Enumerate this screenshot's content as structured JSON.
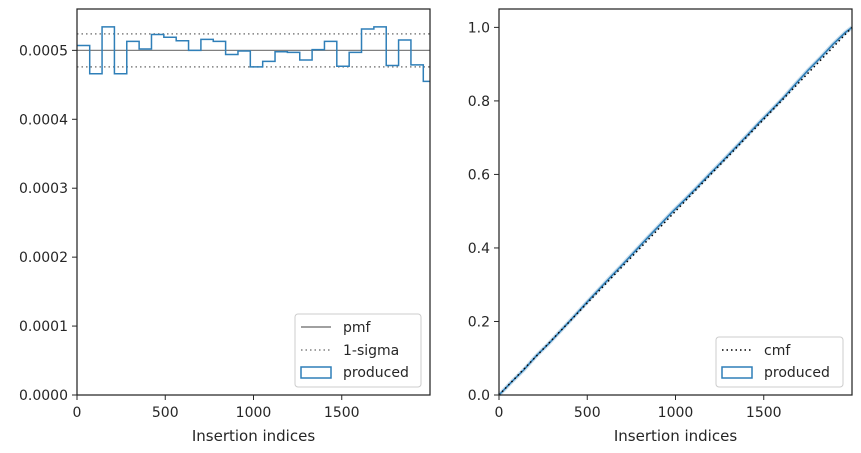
{
  "chart_data": [
    {
      "type": "histogram",
      "xlabel": "Insertion indices",
      "ylabel": "",
      "xlim": [
        0,
        2000
      ],
      "ylim": [
        0,
        0.00056
      ],
      "xticks": [
        0,
        500,
        1000,
        1500
      ],
      "yticks": [
        0.0,
        0.0001,
        0.0002,
        0.0003,
        0.0004,
        0.0005
      ],
      "ytick_labels": [
        "0.0000",
        "0.0001",
        "0.0002",
        "0.0003",
        "0.0004",
        "0.0005"
      ],
      "legend_position": "lower-right",
      "series": [
        {
          "name": "pmf",
          "kind": "hline",
          "value": 0.0005,
          "color": "#808080",
          "style": "solid"
        },
        {
          "name": "1-sigma",
          "kind": "hlines",
          "values": [
            0.000476,
            0.000524
          ],
          "color": "#808080",
          "style": "dotted"
        },
        {
          "name": "produced",
          "kind": "step",
          "color": "#2f7fb8",
          "bin_edges": [
            0,
            72,
            142,
            212,
            282,
            352,
            422,
            492,
            562,
            632,
            702,
            772,
            842,
            912,
            982,
            1052,
            1122,
            1192,
            1262,
            1332,
            1402,
            1472,
            1542,
            1612,
            1682,
            1752,
            1822,
            1892,
            1962,
            2000
          ],
          "values": [
            0.000507,
            0.000466,
            0.000534,
            0.000466,
            0.000513,
            0.000502,
            0.000523,
            0.000519,
            0.000514,
            0.0005,
            0.000516,
            0.000513,
            0.000494,
            0.000499,
            0.000476,
            0.000484,
            0.000498,
            0.000497,
            0.000486,
            0.000501,
            0.000513,
            0.000477,
            0.000497,
            0.000531,
            0.000534,
            0.000478,
            0.000515,
            0.000479,
            0.000455
          ]
        }
      ]
    },
    {
      "type": "line",
      "xlabel": "Insertion indices",
      "ylabel": "",
      "xlim": [
        0,
        2000
      ],
      "ylim": [
        0,
        1.05
      ],
      "xticks": [
        0,
        500,
        1000,
        1500
      ],
      "yticks": [
        0.0,
        0.2,
        0.4,
        0.6,
        0.8,
        1.0
      ],
      "ytick_labels": [
        "0.0",
        "0.2",
        "0.4",
        "0.6",
        "0.8",
        "1.0"
      ],
      "legend_position": "lower-right",
      "series": [
        {
          "name": "cmf",
          "x": [
            0,
            2000
          ],
          "y": [
            0,
            1.0
          ],
          "color": "#000000",
          "style": "dotted"
        },
        {
          "name": "produced",
          "color": "#2f7fb8",
          "style": "solid",
          "x": [
            0,
            72,
            142,
            212,
            282,
            352,
            422,
            492,
            562,
            632,
            702,
            772,
            842,
            912,
            982,
            1052,
            1122,
            1192,
            1262,
            1332,
            1402,
            1472,
            1542,
            1612,
            1682,
            1752,
            1822,
            1892,
            1962,
            2000
          ],
          "y": [
            0.0,
            0.036,
            0.069,
            0.107,
            0.14,
            0.176,
            0.212,
            0.249,
            0.285,
            0.321,
            0.356,
            0.392,
            0.428,
            0.463,
            0.498,
            0.531,
            0.565,
            0.6,
            0.634,
            0.669,
            0.704,
            0.74,
            0.774,
            0.809,
            0.847,
            0.884,
            0.918,
            0.954,
            0.986,
            1.0
          ]
        }
      ]
    }
  ]
}
